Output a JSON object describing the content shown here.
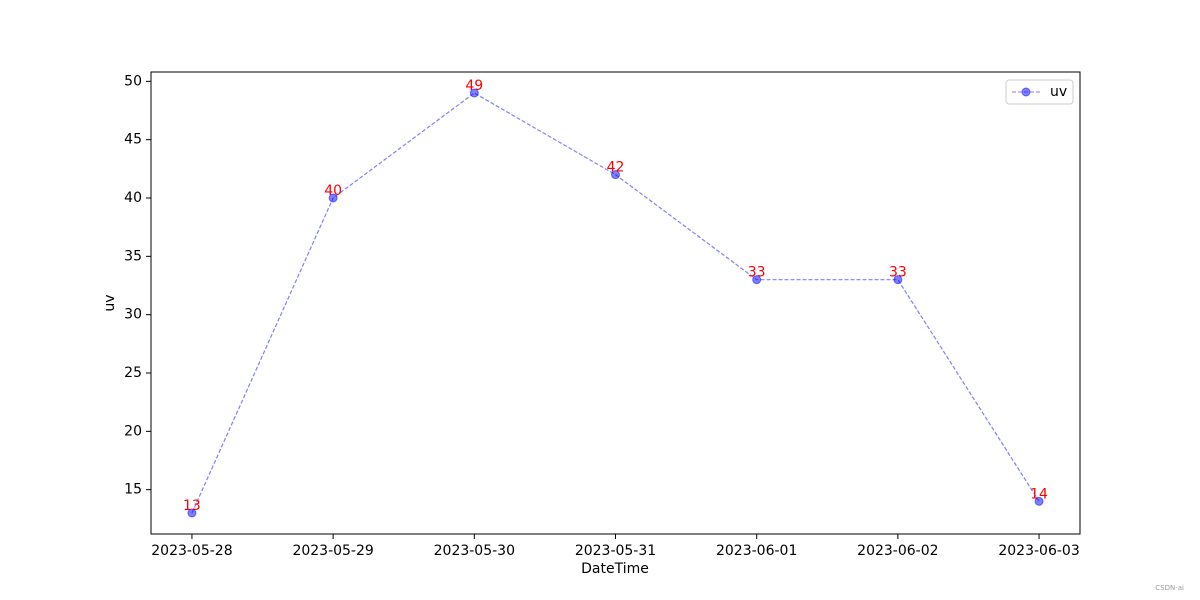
{
  "chart_data": {
    "type": "line",
    "x_label": "DateTime",
    "y_label": "uv",
    "categories": [
      "2023-05-28",
      "2023-05-29",
      "2023-05-30",
      "2023-05-31",
      "2023-06-01",
      "2023-06-02",
      "2023-06-03"
    ],
    "series": [
      {
        "name": "uv",
        "color": "#0000ff",
        "values": [
          13,
          40,
          49,
          42,
          33,
          33,
          14
        ]
      }
    ],
    "label_color": "#ff0000",
    "ylim": [
      11.2,
      50.8
    ],
    "yticks": [
      15,
      20,
      25,
      30,
      35,
      40,
      45,
      50
    ],
    "legend": "upper right",
    "watermark": "CSDN-ai"
  }
}
